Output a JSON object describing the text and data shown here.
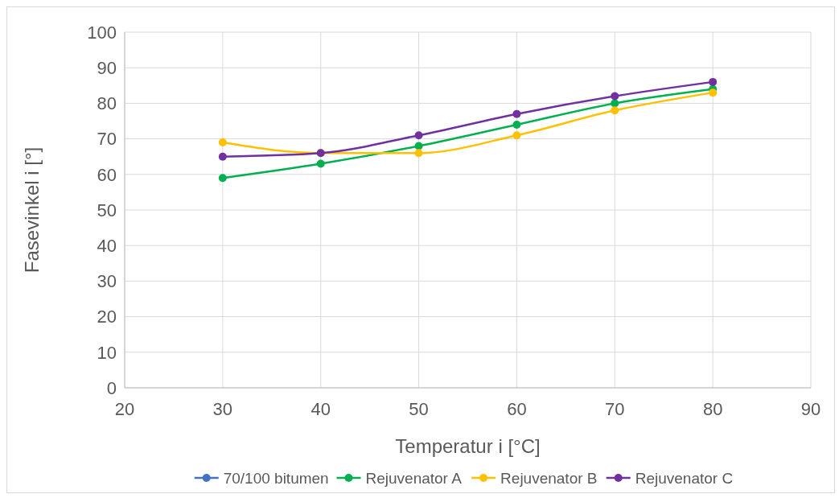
{
  "chart_data": {
    "type": "line",
    "xlabel": "Temperatur i [°C]",
    "ylabel": "Fasevinkel i [°]",
    "x": [
      30,
      40,
      50,
      60,
      70,
      80
    ],
    "series": [
      {
        "name": "70/100 bitumen",
        "color": "#4472c4",
        "values": [
          null,
          null,
          null,
          null,
          null,
          null
        ]
      },
      {
        "name": "Rejuvenator A",
        "color": "#00b050",
        "values": [
          59,
          63,
          68,
          74,
          80,
          84
        ]
      },
      {
        "name": "Rejuvenator B",
        "color": "#ffc000",
        "values": [
          69,
          66,
          66,
          71,
          78,
          83
        ]
      },
      {
        "name": "Rejuvenator C",
        "color": "#7030a0",
        "values": [
          65,
          66,
          71,
          77,
          82,
          86
        ]
      }
    ],
    "xlim": [
      20,
      90
    ],
    "xticks": [
      20,
      30,
      40,
      50,
      60,
      70,
      80,
      90
    ],
    "ylim": [
      0,
      100
    ],
    "yticks": [
      0,
      10,
      20,
      30,
      40,
      50,
      60,
      70,
      80,
      90,
      100
    ],
    "grid": true,
    "legend": "bottom",
    "marker": "circle",
    "line_style": "solid"
  }
}
